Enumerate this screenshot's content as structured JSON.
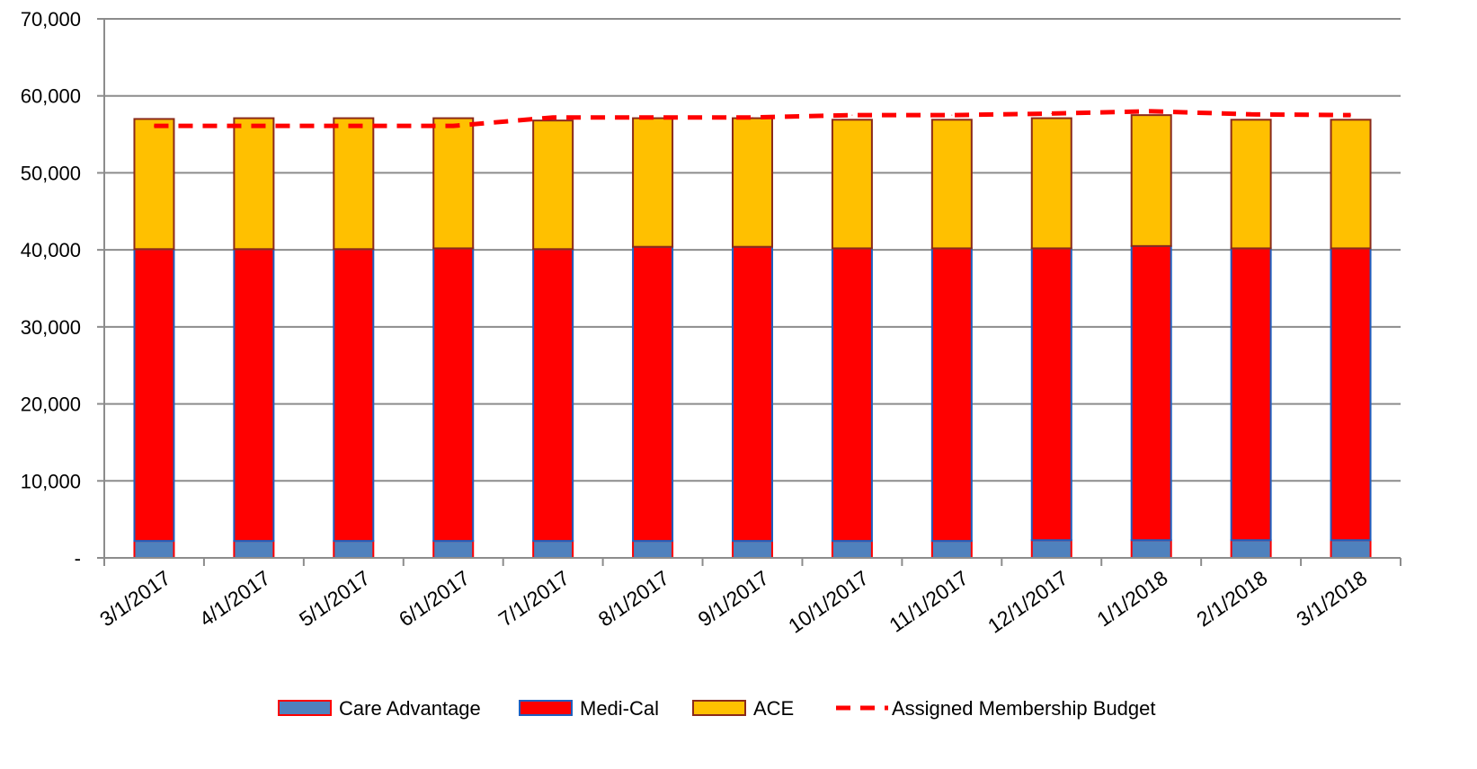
{
  "chart_data": {
    "type": "bar",
    "stacked": true,
    "categories": [
      "3/1/2017",
      "4/1/2017",
      "5/1/2017",
      "6/1/2017",
      "7/1/2017",
      "8/1/2017",
      "9/1/2017",
      "10/1/2017",
      "11/1/2017",
      "12/1/2017",
      "1/1/2018",
      "2/1/2018",
      "3/1/2018"
    ],
    "series": [
      {
        "name": "Care Advantage",
        "type": "bar",
        "fill": "#4f81bd",
        "stroke": "#ff0000",
        "values": [
          2200,
          2200,
          2200,
          2200,
          2200,
          2200,
          2200,
          2200,
          2200,
          2300,
          2300,
          2300,
          2300
        ]
      },
      {
        "name": "Medi-Cal",
        "type": "bar",
        "fill": "#ff0000",
        "stroke": "#1f5fbf",
        "values": [
          37900,
          37900,
          37900,
          38000,
          37900,
          38200,
          38200,
          38000,
          38000,
          37900,
          38200,
          37900,
          37900
        ]
      },
      {
        "name": "ACE",
        "type": "bar",
        "fill": "#ffc000",
        "stroke": "#8b2a1a",
        "values": [
          16900,
          17000,
          17000,
          16900,
          16700,
          16700,
          16700,
          16700,
          16700,
          16900,
          17000,
          16700,
          16700
        ]
      },
      {
        "name": "Assigned Membership Budget",
        "type": "line",
        "stroke": "#ff0000",
        "dashed": true,
        "values": [
          56100,
          56100,
          56100,
          56100,
          57200,
          57200,
          57200,
          57500,
          57500,
          57700,
          58000,
          57600,
          57500
        ]
      }
    ],
    "title": "",
    "xlabel": "",
    "ylabel": "",
    "ylim": [
      0,
      70000
    ],
    "yticks": [
      0,
      10000,
      20000,
      30000,
      40000,
      50000,
      60000,
      70000
    ],
    "ytick_labels": [
      "-",
      "10,000",
      "20,000",
      "30,000",
      "40,000",
      "50,000",
      "60,000",
      "70,000"
    ],
    "grid": "horizontal",
    "legend": "bottom"
  }
}
